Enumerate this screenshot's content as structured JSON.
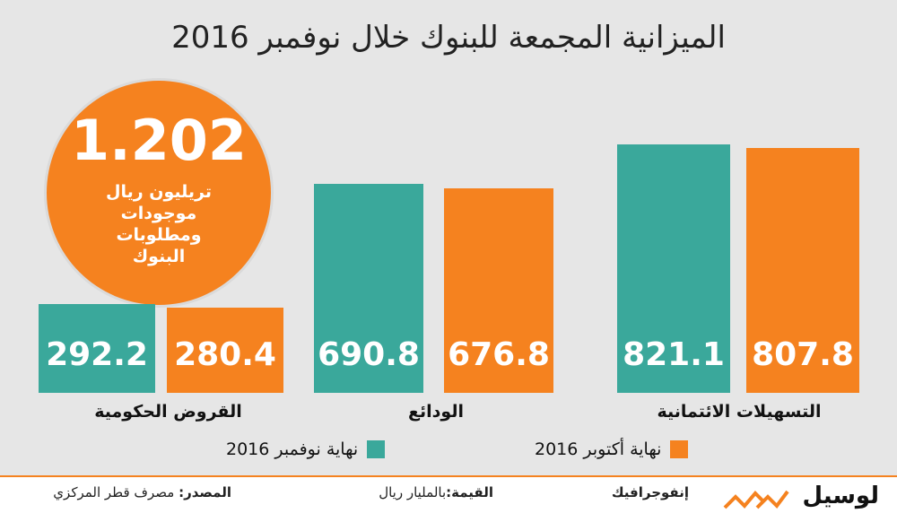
{
  "header": {
    "title": "الميزانية المجمعة للبنوك خلال نوفمبر 2016"
  },
  "highlight": {
    "value": "1.202",
    "lines": [
      "تريليون ريال",
      "موجودات",
      "ومطلوبات",
      "البنوك"
    ]
  },
  "colors": {
    "november": "#3aa89b",
    "october": "#f5821f",
    "panel": "#e6e6e6"
  },
  "chart_data": {
    "type": "bar",
    "categories": [
      "القروض الحكومية",
      "الودائع",
      "التسهيلات الائتمانية"
    ],
    "series": [
      {
        "name": "نهاية نوفمبر 2016",
        "values": [
          292.2,
          690.8,
          821.1
        ]
      },
      {
        "name": "نهاية أكتوبر 2016",
        "values": [
          280.4,
          676.8,
          807.8
        ]
      }
    ],
    "labels": {
      "november": [
        "292.2",
        "690.8",
        "821.1"
      ],
      "october": [
        "280.4",
        "676.8",
        "807.8"
      ]
    },
    "ylim": [
      0,
      900
    ],
    "grid": false,
    "legend_position": "bottom"
  },
  "legend": {
    "november": "نهاية نوفمبر 2016",
    "october": "نهاية أكتوبر 2016"
  },
  "footer": {
    "source_key": "المصدر:",
    "source_value": " مصرف قطر المركزي",
    "value_key": "القيمة:",
    "value_value": "بالمليار ريال",
    "infographic": "إنفوجرافيك",
    "logo": "لوسيل"
  }
}
